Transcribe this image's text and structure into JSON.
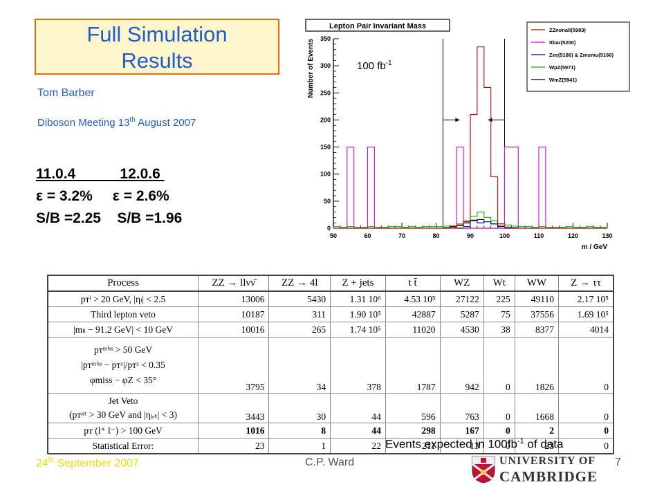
{
  "title": {
    "line1": "Full Simulation",
    "line2": "Results"
  },
  "author": "Tom Barber",
  "meeting": {
    "text": "Diboson Meeting 13",
    "sup": "th",
    "tail": " August 2007"
  },
  "results": {
    "header": "11.0.4           12.0.6 ",
    "efficiency": "ε = 3.2%     ε = 2.6%",
    "sb": "S/B =2.25    S/B =1.96"
  },
  "chart_data": {
    "type": "histogram",
    "title": "Lepton Pair Invariant Mass",
    "xlabel": "m / GeV",
    "ylabel": "Number of Events",
    "xlim": [
      50,
      130
    ],
    "ylim": [
      0,
      350
    ],
    "x_ticks": [
      "50",
      "60",
      "70",
      "80",
      "90",
      "100",
      "110",
      "120",
      "130"
    ],
    "y_ticks": [
      "0",
      "50",
      "100",
      "150",
      "200",
      "250",
      "300",
      "350"
    ],
    "bin_edges": [
      50,
      52,
      54,
      56,
      58,
      60,
      62,
      64,
      66,
      68,
      70,
      72,
      74,
      76,
      78,
      80,
      82,
      84,
      86,
      88,
      90,
      92,
      94,
      96,
      98,
      100,
      102,
      104,
      106,
      108,
      110,
      112,
      114,
      116,
      118,
      120,
      122,
      124,
      126,
      128,
      130
    ],
    "annotation": "100 fb",
    "annotation_sup": "-1",
    "cut_window": [
      82,
      100
    ],
    "series": [
      {
        "name": "ZZnonall(5983)",
        "color": "#cc0000",
        "values": [
          0,
          0,
          0,
          0,
          0,
          0,
          0,
          0,
          0,
          0,
          0,
          0,
          0,
          0,
          0,
          0,
          0,
          1,
          5,
          12,
          210,
          335,
          260,
          95,
          8,
          2,
          0,
          0,
          0,
          0,
          0,
          0,
          0,
          0,
          0,
          0,
          0,
          0,
          0,
          0
        ]
      },
      {
        "name": "ttbar(5200)",
        "color": "#dd00dd",
        "values": [
          0,
          0,
          150,
          0,
          0,
          150,
          0,
          0,
          0,
          0,
          0,
          0,
          0,
          0,
          0,
          0,
          0,
          0,
          150,
          0,
          0,
          0,
          0,
          0,
          0,
          150,
          150,
          0,
          0,
          0,
          150,
          0,
          0,
          0,
          0,
          0,
          0,
          0,
          0,
          0
        ]
      },
      {
        "name": "Zee(5186) & Zmumu(5166)",
        "color": "#000088",
        "values": [
          0,
          0,
          0,
          0,
          0,
          0,
          0,
          0,
          0,
          0,
          0,
          0,
          0,
          0,
          0,
          0,
          0,
          0,
          5,
          3,
          15,
          10,
          12,
          8,
          3,
          0,
          0,
          0,
          0,
          0,
          0,
          0,
          0,
          0,
          0,
          0,
          0,
          0,
          0,
          0
        ]
      },
      {
        "name": "WpZ(5971)",
        "color": "#00bb00",
        "values": [
          3,
          2,
          3,
          2,
          2,
          3,
          2,
          2,
          3,
          3,
          2,
          3,
          2,
          3,
          3,
          3,
          4,
          5,
          8,
          14,
          22,
          30,
          20,
          14,
          8,
          6,
          4,
          3,
          3,
          2,
          3,
          2,
          2,
          2,
          3,
          2,
          2,
          3,
          2,
          2
        ]
      },
      {
        "name": "WmZ(5941)",
        "color": "#000000",
        "values": [
          0,
          0,
          0,
          0,
          0,
          0,
          0,
          0,
          0,
          0,
          0,
          0,
          0,
          0,
          0,
          0,
          1,
          3,
          6,
          10,
          14,
          16,
          12,
          8,
          4,
          2,
          1,
          0,
          0,
          0,
          0,
          0,
          0,
          0,
          0,
          0,
          0,
          0,
          0,
          0
        ]
      }
    ]
  },
  "table": {
    "header": [
      "Process",
      "ZZ → llνν̄",
      "ZZ → 4l",
      "Z + jets",
      "t t̄",
      "WZ",
      "Wt",
      "WW",
      "Z → ττ"
    ],
    "rows": [
      {
        "label": [
          "pᴛˡ > 20 GeV, |ηₗ| < 2.5"
        ],
        "cells": [
          "13006",
          "5430",
          "1.31 10⁶",
          "4.53 10⁵",
          "27122",
          "225",
          "49110",
          "2.17 10⁵"
        ]
      },
      {
        "label": [
          "Third lepton veto"
        ],
        "cells": [
          "10187",
          "311",
          "1.90 10⁵",
          "42887",
          "5287",
          "75",
          "37556",
          "1.69 10⁵"
        ]
      },
      {
        "label": [
          "|mₗₗ − 91.2 GeV| < 10 GeV"
        ],
        "cells": [
          "10016",
          "265",
          "1.74 10⁵",
          "11020",
          "4530",
          "38",
          "8377",
          "4014"
        ]
      },
      {
        "label": [
          "pᴛᵐⁱˢˢ > 50 GeV",
          "|pᴛᵐⁱˢˢ − pᴛᶻ|/pᴛᶻ < 0.35",
          "φmiss − φZ < 35°"
        ],
        "cells": [
          "3795",
          "34",
          "378",
          "1787",
          "942",
          "0",
          "1826",
          "0"
        ]
      },
      {
        "label": [
          "Jet Veto",
          "(pᴛʲᵉᵗ > 30 GeV and |ηⱼₑₜ| < 3)"
        ],
        "cells": [
          "3443",
          "30",
          "44",
          "596",
          "763",
          "0",
          "1668",
          "0"
        ]
      },
      {
        "label": [
          "pᴛ (l⁺ l⁻) > 100 GeV"
        ],
        "cells": [
          "1016",
          "8",
          "44",
          "298",
          "167",
          "0",
          "2",
          "0"
        ]
      },
      {
        "label": [
          "Statistical Error:"
        ],
        "cells": [
          "23",
          "1",
          "22",
          "211",
          "13",
          "0",
          "23",
          "0"
        ]
      }
    ]
  },
  "caption": {
    "text": "Events expected in 100fb",
    "sup": "-1",
    "tail": " of data"
  },
  "footer": {
    "date": "24",
    "date_sup": "th",
    "date_tail": " September 2007",
    "author": "C.P. Ward",
    "page": "7"
  },
  "logo": {
    "line1": "UNIVERSITY OF",
    "line2": "CAMBRIDGE"
  }
}
